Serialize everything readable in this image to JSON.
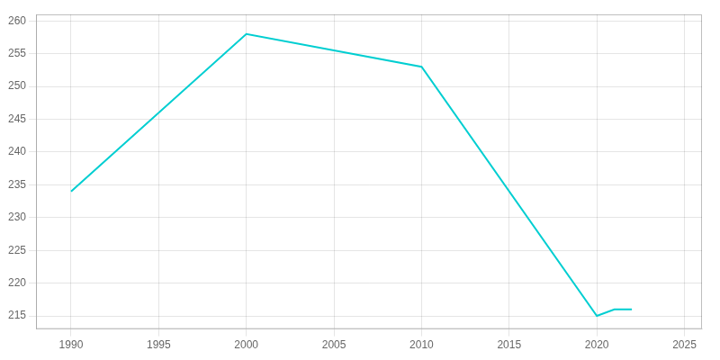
{
  "chart_data": {
    "type": "line",
    "x": [
      1990,
      2000,
      2010,
      2020,
      2021,
      2022
    ],
    "values": [
      234,
      258,
      253,
      215,
      216,
      216
    ],
    "color": "#00CED1",
    "xlim": [
      1988,
      2026
    ],
    "ylim": [
      213,
      261
    ],
    "xticks": [
      1990,
      1995,
      2000,
      2005,
      2010,
      2015,
      2020,
      2025
    ],
    "yticks": [
      215,
      220,
      225,
      230,
      235,
      240,
      245,
      250,
      255,
      260
    ],
    "grid": true
  }
}
